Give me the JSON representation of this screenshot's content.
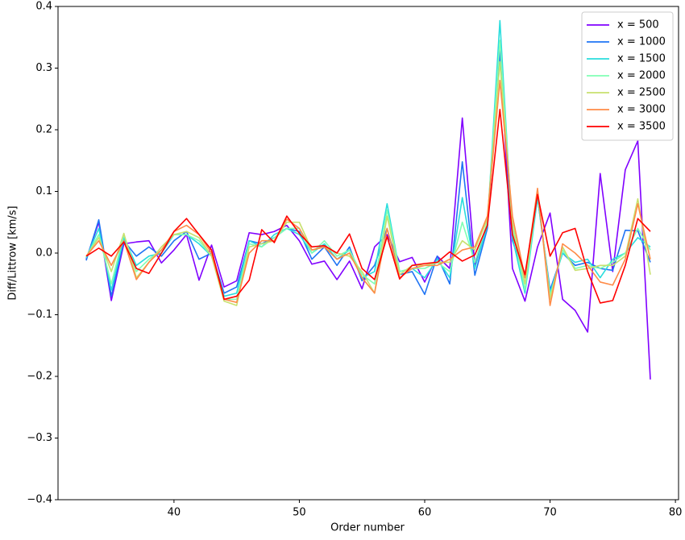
{
  "chart_data": {
    "type": "line",
    "xlabel": "Order number",
    "ylabel": "Diff/Littrow [km/s]",
    "x": [
      33,
      34,
      35,
      36,
      37,
      38,
      39,
      40,
      41,
      42,
      43,
      44,
      45,
      46,
      47,
      48,
      49,
      50,
      51,
      52,
      53,
      54,
      55,
      56,
      57,
      58,
      59,
      60,
      61,
      62,
      63,
      64,
      65,
      66,
      67,
      68,
      69,
      70,
      71,
      72,
      73,
      74,
      75,
      76,
      77,
      78
    ],
    "xlim": [
      30.75,
      80.25
    ],
    "xticks": [
      40,
      50,
      60,
      70,
      80
    ],
    "ylim": [
      -0.4,
      0.4
    ],
    "yticks": [
      {
        "value": -0.4,
        "label": "−0.4"
      },
      {
        "value": -0.3,
        "label": "−0.3"
      },
      {
        "value": -0.2,
        "label": "−0.2"
      },
      {
        "value": -0.1,
        "label": "−0.1"
      },
      {
        "value": 0,
        "label": "0.0"
      },
      0.1,
      0.2,
      0.3,
      0.4
    ],
    "legend": "upper right",
    "series": [
      {
        "name": "x = 500",
        "color": "#8000ff",
        "values": [
          -0.01,
          0.05,
          -0.077,
          0.015,
          0.018,
          0.02,
          -0.016,
          0.005,
          0.03,
          -0.044,
          0.013,
          -0.055,
          -0.045,
          0.033,
          0.03,
          0.035,
          0.045,
          0.02,
          -0.018,
          -0.013,
          -0.043,
          -0.013,
          -0.058,
          0.01,
          0.03,
          -0.014,
          -0.007,
          -0.047,
          -0.005,
          -0.025,
          0.219,
          -0.02,
          0.045,
          0.33,
          -0.025,
          -0.078,
          0.01,
          0.065,
          -0.075,
          -0.093,
          -0.128,
          0.129,
          -0.03,
          0.135,
          0.182,
          -0.205
        ]
      },
      {
        "name": "x = 1000",
        "color": "#1f74f4",
        "values": [
          -0.012,
          0.054,
          -0.07,
          0.02,
          -0.005,
          0.01,
          -0.005,
          0.02,
          0.035,
          -0.01,
          0.0,
          -0.065,
          -0.055,
          0.02,
          0.015,
          0.025,
          0.04,
          0.035,
          -0.01,
          0.01,
          -0.02,
          0.01,
          -0.045,
          -0.02,
          0.04,
          -0.035,
          -0.03,
          -0.067,
          -0.005,
          -0.05,
          0.148,
          -0.036,
          0.04,
          0.33,
          0.02,
          -0.04,
          0.09,
          -0.06,
          0.0,
          -0.02,
          -0.015,
          -0.025,
          -0.028,
          0.037,
          0.036,
          -0.015
        ]
      },
      {
        "name": "x = 1500",
        "color": "#2adddd",
        "values": [
          -0.008,
          0.04,
          -0.06,
          0.025,
          -0.02,
          -0.005,
          0.0,
          0.03,
          0.03,
          0.015,
          -0.005,
          -0.07,
          -0.065,
          0.02,
          0.01,
          0.03,
          0.04,
          0.03,
          0.0,
          0.015,
          -0.01,
          0.005,
          -0.04,
          -0.03,
          0.08,
          -0.03,
          -0.025,
          -0.04,
          -0.01,
          -0.04,
          0.09,
          -0.025,
          0.045,
          0.377,
          0.025,
          -0.065,
          0.09,
          -0.065,
          0.0,
          -0.015,
          -0.01,
          -0.04,
          -0.01,
          0.0,
          0.025,
          0.01
        ]
      },
      {
        "name": "x = 2000",
        "color": "#80ffb4",
        "values": [
          -0.006,
          0.03,
          -0.05,
          0.03,
          -0.03,
          -0.01,
          0.005,
          0.03,
          0.03,
          0.02,
          -0.005,
          -0.075,
          -0.075,
          0.015,
          0.01,
          0.025,
          0.04,
          0.04,
          0.0,
          0.02,
          -0.005,
          0.005,
          -0.035,
          -0.05,
          0.07,
          -0.03,
          -0.025,
          -0.025,
          -0.015,
          -0.03,
          0.05,
          -0.015,
          0.05,
          0.345,
          0.04,
          -0.06,
          0.1,
          -0.07,
          0.005,
          -0.025,
          -0.02,
          -0.025,
          -0.015,
          0.0,
          0.04,
          0.005
        ]
      },
      {
        "name": "x = 2500",
        "color": "#c8e06e",
        "values": [
          -0.005,
          0.025,
          -0.03,
          0.032,
          -0.04,
          -0.015,
          0.01,
          0.03,
          0.035,
          0.025,
          -0.005,
          -0.078,
          -0.085,
          0.01,
          0.015,
          0.02,
          0.05,
          0.05,
          0.005,
          0.01,
          0.0,
          -0.005,
          -0.03,
          -0.065,
          0.06,
          -0.035,
          -0.02,
          -0.02,
          -0.015,
          -0.015,
          0.02,
          0.005,
          0.055,
          0.31,
          0.05,
          -0.05,
          0.1,
          -0.075,
          0.01,
          -0.028,
          -0.025,
          -0.02,
          -0.02,
          -0.005,
          0.088,
          -0.035
        ]
      },
      {
        "name": "x = 3000",
        "color": "#ff8b47",
        "values": [
          -0.005,
          0.02,
          -0.02,
          0.02,
          -0.043,
          -0.015,
          0.005,
          0.035,
          0.045,
          0.03,
          0.0,
          -0.075,
          -0.08,
          0.0,
          0.02,
          0.02,
          0.055,
          0.04,
          0.005,
          0.01,
          -0.01,
          0.0,
          -0.04,
          -0.065,
          0.04,
          -0.04,
          -0.025,
          -0.02,
          -0.02,
          -0.01,
          0.005,
          0.01,
          0.06,
          0.28,
          0.06,
          -0.04,
          0.105,
          -0.085,
          0.015,
          0.0,
          -0.02,
          -0.047,
          -0.052,
          -0.01,
          0.08,
          -0.01
        ]
      },
      {
        "name": "x = 3500",
        "color": "#ff0000",
        "values": [
          -0.005,
          0.008,
          -0.005,
          0.018,
          -0.025,
          -0.033,
          0.0,
          0.035,
          0.056,
          0.03,
          0.005,
          -0.075,
          -0.07,
          -0.044,
          0.038,
          0.017,
          0.06,
          0.032,
          0.01,
          0.012,
          0.0,
          0.031,
          -0.025,
          -0.043,
          0.027,
          -0.042,
          -0.02,
          -0.017,
          -0.015,
          0.002,
          -0.013,
          -0.003,
          0.045,
          0.233,
          0.03,
          -0.035,
          0.095,
          -0.005,
          0.033,
          0.04,
          -0.03,
          -0.081,
          -0.077,
          -0.02,
          0.056,
          0.035
        ]
      }
    ]
  }
}
